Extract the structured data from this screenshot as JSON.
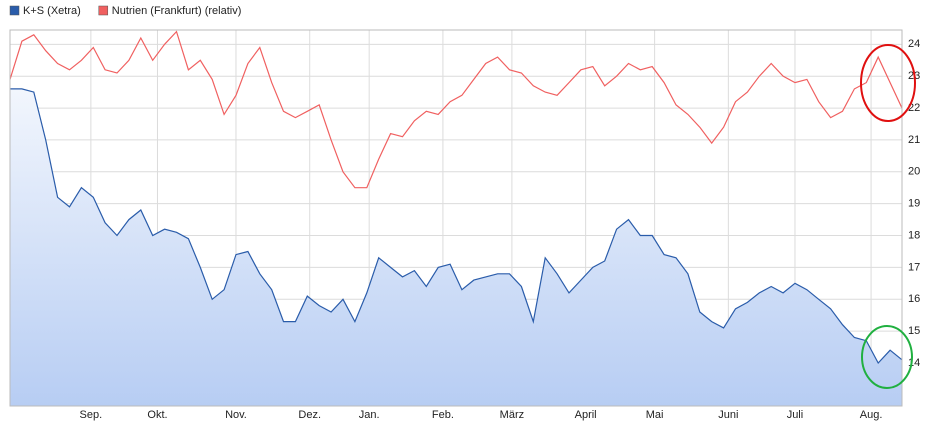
{
  "chart_data": {
    "type": "line",
    "x": [
      0,
      5,
      10,
      15,
      20,
      25,
      30,
      35,
      40,
      45,
      50,
      55,
      60,
      65,
      70,
      75,
      80,
      85,
      90,
      95,
      100,
      105,
      110,
      115,
      120,
      125,
      130,
      135,
      140,
      145,
      150,
      155,
      160,
      165,
      170,
      175,
      180,
      185,
      190,
      195,
      200,
      205,
      210,
      215,
      220,
      225,
      230,
      235,
      240,
      245,
      250,
      255,
      260,
      265,
      270,
      275,
      280,
      285,
      290,
      295,
      300,
      305,
      310,
      315,
      320,
      325,
      330,
      335,
      340,
      345,
      350,
      355,
      360,
      365,
      370,
      375
    ],
    "series": [
      {
        "name": "K+S (Xetra)",
        "color": "#2a5caa",
        "area": true,
        "values": [
          22.6,
          22.6,
          22.5,
          21.0,
          19.2,
          18.9,
          19.5,
          19.2,
          18.4,
          18.0,
          18.5,
          18.8,
          18.0,
          18.2,
          18.1,
          17.9,
          17.0,
          16.0,
          16.3,
          17.4,
          17.5,
          16.8,
          16.3,
          15.3,
          15.3,
          16.1,
          15.8,
          15.6,
          16.0,
          15.3,
          16.2,
          17.3,
          17.0,
          16.7,
          16.9,
          16.4,
          17.0,
          17.1,
          16.3,
          16.6,
          16.7,
          16.8,
          16.8,
          16.4,
          15.3,
          17.3,
          16.8,
          16.2,
          16.6,
          17.0,
          17.2,
          18.2,
          18.5,
          18.0,
          18.0,
          17.4,
          17.3,
          16.8,
          15.6,
          15.3,
          15.1,
          15.7,
          15.9,
          16.2,
          16.4,
          16.2,
          16.5,
          16.3,
          16.0,
          15.7,
          15.2,
          14.8,
          14.7,
          14.0,
          14.4,
          14.1
        ]
      },
      {
        "name": "Nutrien (Frankfurt) (relativ)",
        "color": "#f06060",
        "area": false,
        "values": [
          22.9,
          24.1,
          24.3,
          23.8,
          23.4,
          23.2,
          23.5,
          23.9,
          23.2,
          23.1,
          23.5,
          24.2,
          23.5,
          24.0,
          24.4,
          23.2,
          23.5,
          22.9,
          21.8,
          22.4,
          23.4,
          23.9,
          22.8,
          21.9,
          21.7,
          21.9,
          22.1,
          21.0,
          20.0,
          19.5,
          19.5,
          20.4,
          21.2,
          21.1,
          21.6,
          21.9,
          21.8,
          22.2,
          22.4,
          22.9,
          23.4,
          23.6,
          23.2,
          23.1,
          22.7,
          22.5,
          22.4,
          22.8,
          23.2,
          23.3,
          22.7,
          23.0,
          23.4,
          23.2,
          23.3,
          22.8,
          22.1,
          21.8,
          21.4,
          20.9,
          21.4,
          22.2,
          22.5,
          23.0,
          23.4,
          23.0,
          22.8,
          22.9,
          22.2,
          21.7,
          21.9,
          22.6,
          22.8,
          23.6,
          22.8,
          22.0
        ]
      }
    ],
    "xlim": [
      0,
      375
    ],
    "xticks": [
      {
        "value": 34,
        "label": "Sep."
      },
      {
        "value": 62,
        "label": "Okt."
      },
      {
        "value": 95,
        "label": "Nov."
      },
      {
        "value": 126,
        "label": "Dez."
      },
      {
        "value": 151,
        "label": "Jan."
      },
      {
        "value": 182,
        "label": "Feb."
      },
      {
        "value": 211,
        "label": "März"
      },
      {
        "value": 242,
        "label": "April"
      },
      {
        "value": 271,
        "label": "Mai"
      },
      {
        "value": 302,
        "label": "Juni"
      },
      {
        "value": 330,
        "label": "Juli"
      },
      {
        "value": 362,
        "label": "Aug."
      }
    ],
    "ylim": [
      12.65,
      24.45
    ],
    "yticks": [
      14,
      15,
      16,
      17,
      18,
      19,
      20,
      21,
      22,
      23,
      24
    ],
    "grid": true
  }
}
